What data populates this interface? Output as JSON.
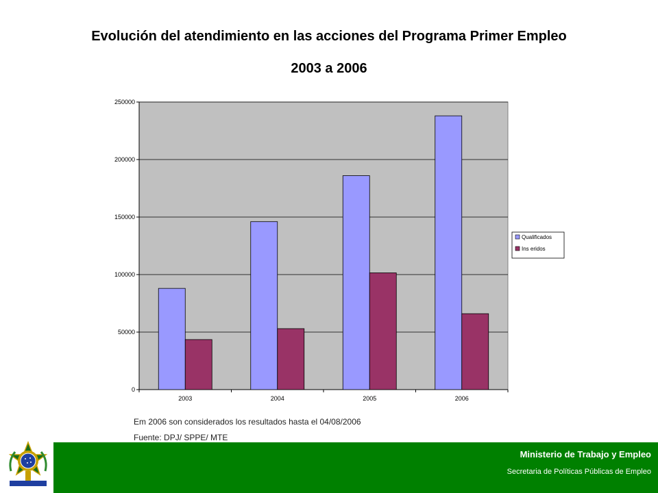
{
  "title_line1": "Evolución del atendimiento en las acciones del Programa Primer Empleo",
  "title_line2": "2003 a 2006",
  "note": "Em 2006 son considerados los resultados hasta el 04/08/2006",
  "source": "Fuente: DPJ/ SPPE/ MTE",
  "footer": {
    "ministry": "Ministerio de Trabajo y Empleo",
    "secretariat": "Secretaria de Políticas Públicas de Empleo",
    "emblem_icon": "brazil-coat-of-arms-icon"
  },
  "colors": {
    "background": "#ffffff",
    "plot_area": "#c0c0c0",
    "footer_green": "#008000"
  },
  "chart_data": {
    "type": "bar",
    "categories": [
      "2003",
      "2004",
      "2005",
      "2006"
    ],
    "series": [
      {
        "name": "Qualificados",
        "values": [
          88000,
          146000,
          186000,
          238000
        ],
        "color": "#9999ff"
      },
      {
        "name": "Ins eridos",
        "values": [
          43500,
          53000,
          101500,
          66000
        ],
        "color": "#993366"
      }
    ],
    "ylim": [
      0,
      250000
    ],
    "yticks": [
      "0",
      "50000",
      "100000",
      "150000",
      "200000",
      "250000"
    ],
    "grid": true,
    "legend_position": "right"
  }
}
